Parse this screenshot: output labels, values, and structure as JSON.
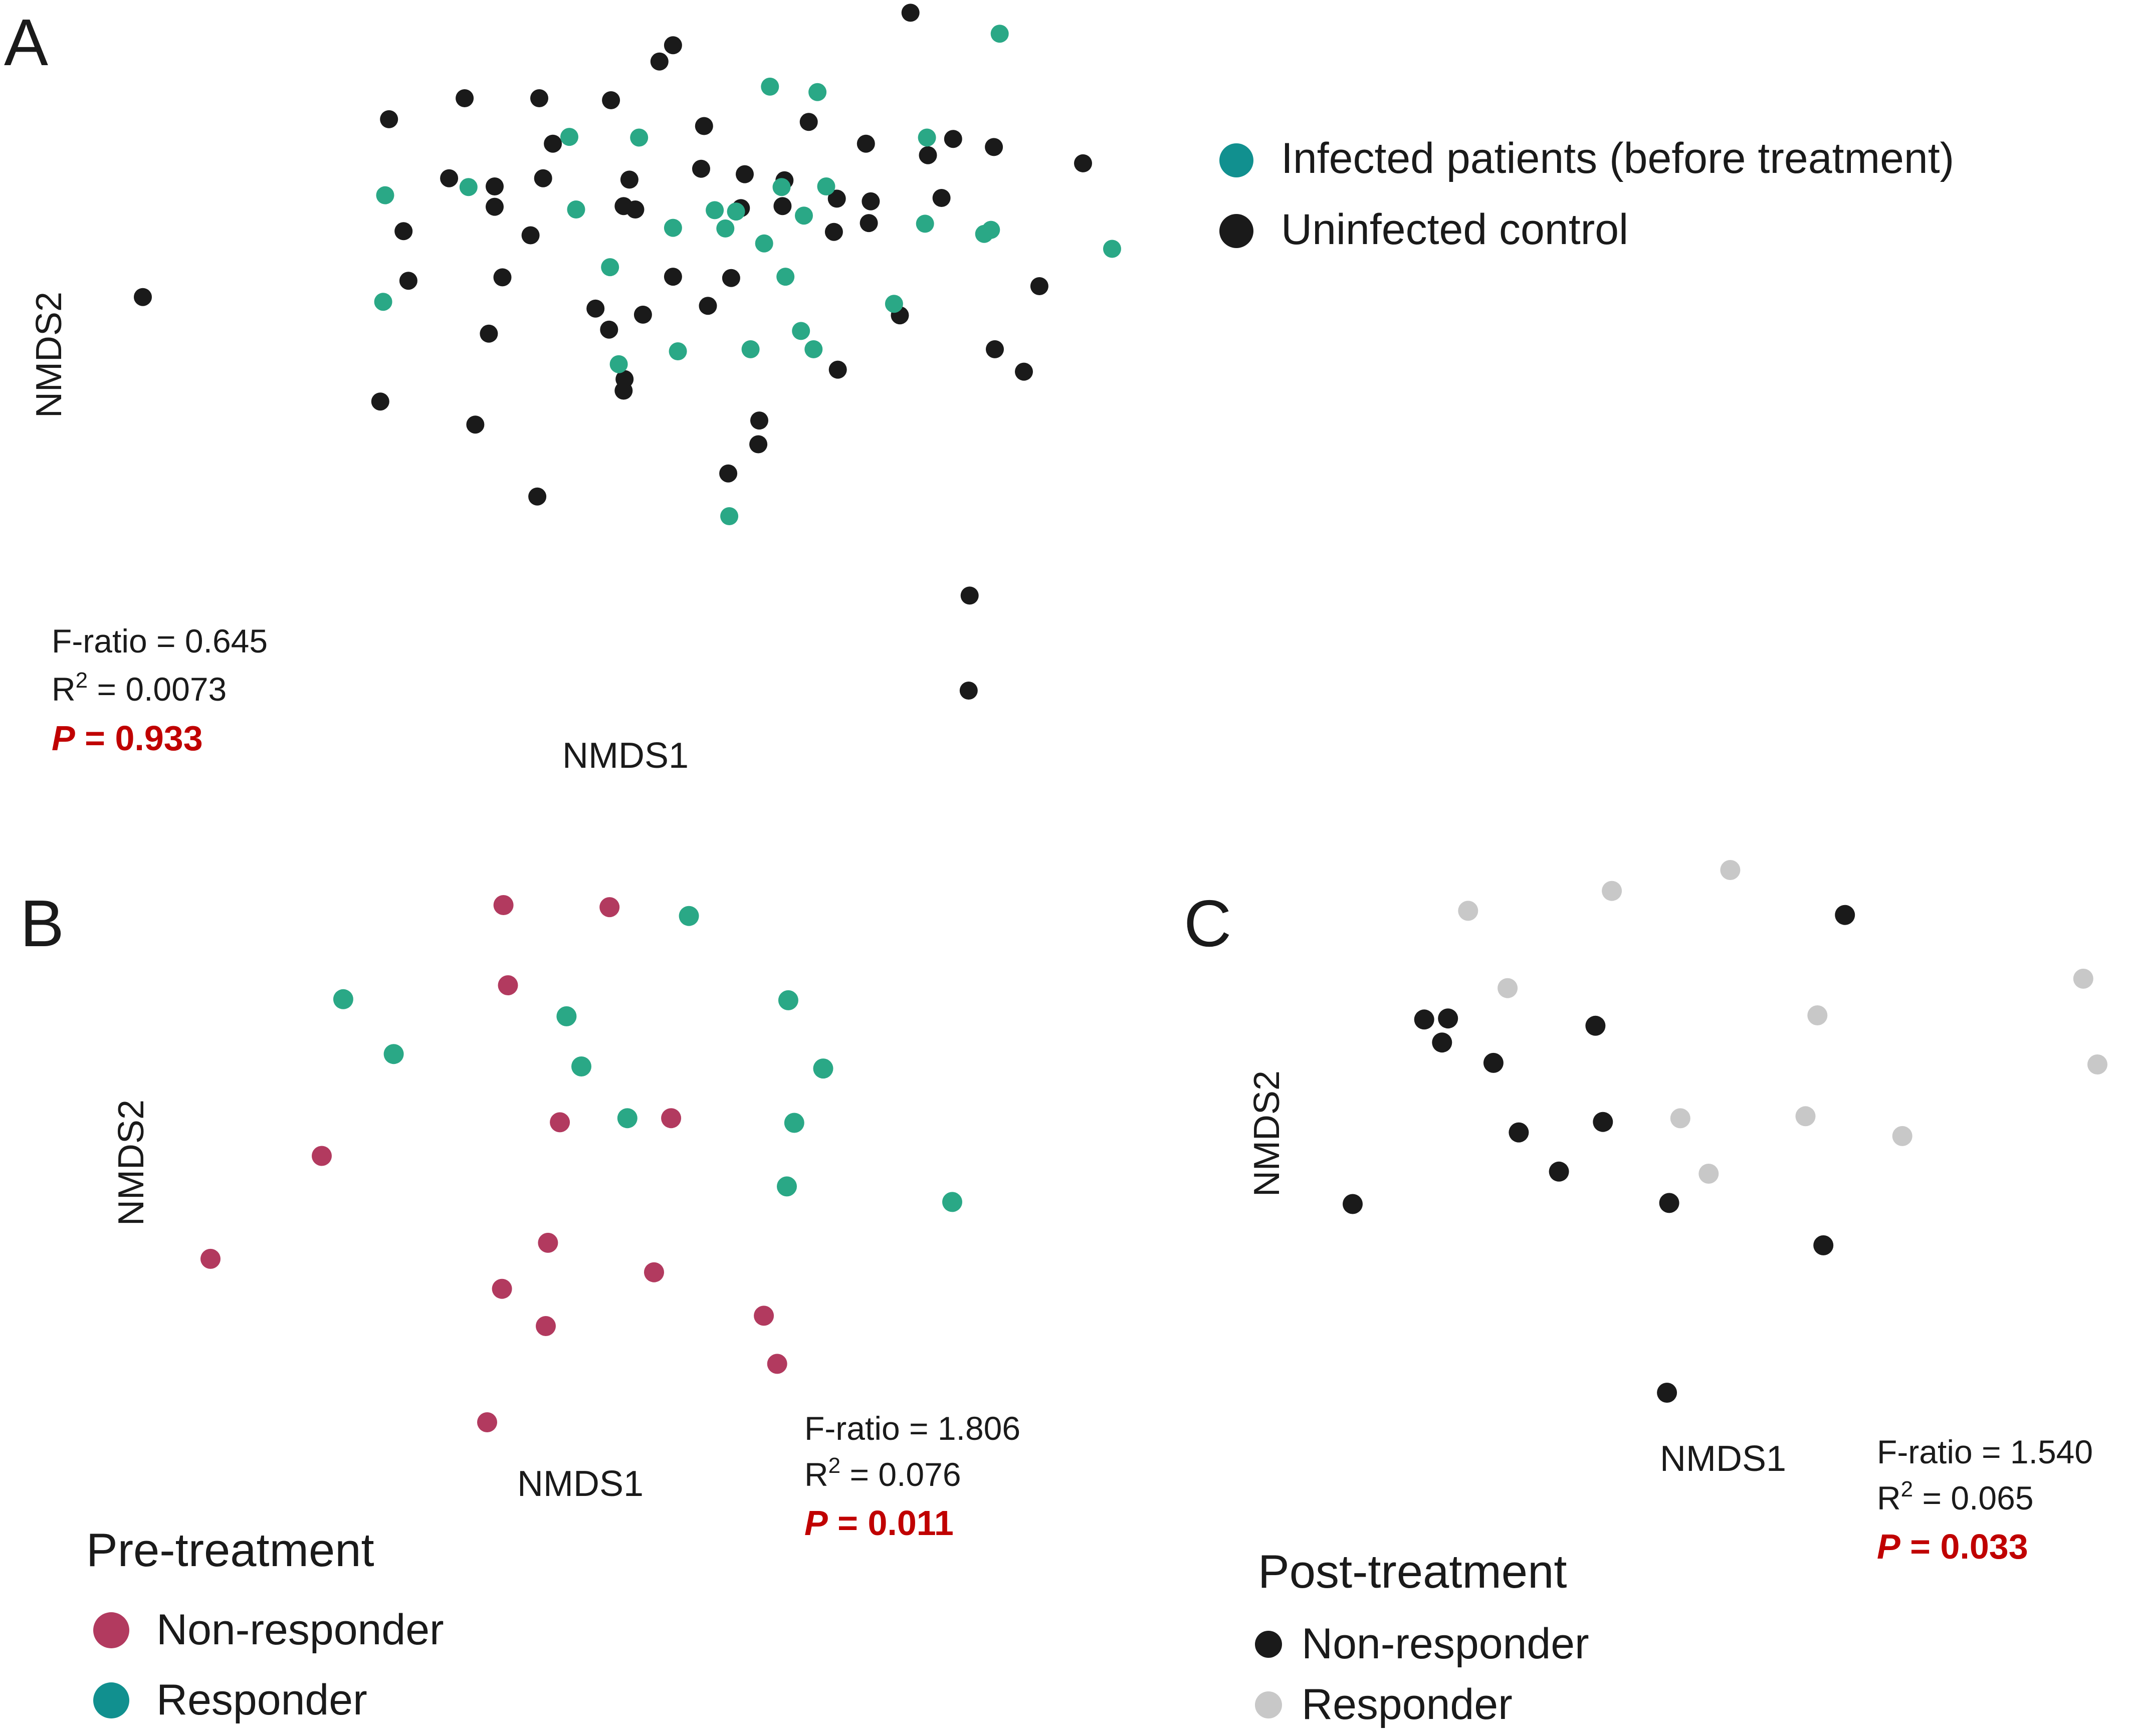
{
  "colors": {
    "infected": "#2aa886",
    "legend_infected": "#11908f",
    "uninfected": "#1a1a1a",
    "non_responder_pre": "#b23a5f",
    "responder_pre": "#2aa886",
    "legend_responder_pre": "#11908f",
    "non_responder_post": "#1a1a1a",
    "responder_post": "#c8c8c8",
    "p_value": "#c00000",
    "text": "#1a1a1a"
  },
  "chart_data": [
    {
      "panel": "A",
      "type": "scatter",
      "xlabel": "NMDS1",
      "ylabel": "NMDS2",
      "grid": false,
      "axes_visible": false,
      "xlim": [
        0,
        100
      ],
      "ylim": [
        0,
        100
      ],
      "legend": {
        "placement": "top-right",
        "entries": [
          {
            "label": "Infected patients (before treatment)",
            "color_key": "legend_infected"
          },
          {
            "label": "Uninfected control",
            "color_key": "uninfected"
          }
        ]
      },
      "stats": {
        "f_ratio": "F-ratio = 0.645",
        "r2_prefix": "R",
        "r2_sup": "2",
        "r2_value": " = 0.0073",
        "p_label": "P",
        "p_value": " = 0.933"
      },
      "series": [
        {
          "name": "Uninfected control",
          "color_key": "uninfected",
          "points": [
            [
              0,
              58.0
            ],
            [
              25.4,
              84.2
            ],
            [
              33.2,
              87.3
            ],
            [
              40.9,
              87.3
            ],
            [
              48.3,
              87.0
            ],
            [
              53.3,
              92.7
            ],
            [
              54.7,
              95.1
            ],
            [
              79.2,
              99.9
            ],
            [
              42.3,
              80.6
            ],
            [
              57.9,
              83.2
            ],
            [
              68.7,
              83.8
            ],
            [
              83.6,
              81.3
            ],
            [
              31.6,
              75.5
            ],
            [
              41.3,
              75.5
            ],
            [
              50.2,
              75.3
            ],
            [
              57.6,
              76.9
            ],
            [
              62.1,
              76.1
            ],
            [
              66.2,
              75.2
            ],
            [
              74.6,
              80.6
            ],
            [
              81.0,
              78.9
            ],
            [
              87.8,
              80.1
            ],
            [
              97.0,
              77.7
            ],
            [
              36.3,
              74.3
            ],
            [
              36.3,
              71.3
            ],
            [
              49.6,
              71.4
            ],
            [
              50.8,
              70.9
            ],
            [
              61.7,
              71.1
            ],
            [
              66.0,
              71.4
            ],
            [
              71.6,
              72.5
            ],
            [
              75.1,
              72.1
            ],
            [
              82.4,
              72.6
            ],
            [
              26.9,
              67.7
            ],
            [
              40.0,
              67.1
            ],
            [
              71.3,
              67.6
            ],
            [
              74.9,
              68.9
            ],
            [
              27.4,
              60.4
            ],
            [
              37.1,
              60.9
            ],
            [
              54.7,
              61.0
            ],
            [
              60.7,
              60.8
            ],
            [
              92.5,
              59.6
            ],
            [
              46.7,
              56.3
            ],
            [
              51.6,
              55.4
            ],
            [
              58.3,
              56.7
            ],
            [
              78.1,
              55.3
            ],
            [
              35.7,
              52.6
            ],
            [
              48.1,
              53.2
            ],
            [
              87.9,
              50.3
            ],
            [
              71.7,
              47.3
            ],
            [
              90.9,
              47.0
            ],
            [
              49.7,
              45.9
            ],
            [
              49.6,
              44.2
            ],
            [
              24.5,
              42.6
            ],
            [
              34.3,
              39.2
            ],
            [
              63.6,
              39.8
            ],
            [
              63.5,
              36.3
            ],
            [
              60.4,
              32.0
            ],
            [
              40.7,
              28.6
            ],
            [
              85.3,
              14.0
            ],
            [
              85.2,
              0.0
            ]
          ]
        },
        {
          "name": "Infected patients (before treatment)",
          "color_key": "infected",
          "points": [
            [
              88.4,
              96.8
            ],
            [
              64.7,
              89.0
            ],
            [
              69.6,
              88.2
            ],
            [
              44.0,
              81.6
            ],
            [
              51.2,
              81.5
            ],
            [
              80.9,
              81.5
            ],
            [
              33.6,
              74.2
            ],
            [
              25.0,
              73.0
            ],
            [
              65.9,
              74.2
            ],
            [
              70.5,
              74.3
            ],
            [
              44.7,
              70.9
            ],
            [
              61.2,
              70.6
            ],
            [
              68.2,
              70.0
            ],
            [
              80.7,
              68.8
            ],
            [
              54.7,
              68.2
            ],
            [
              59.0,
              70.8
            ],
            [
              60.1,
              68.1
            ],
            [
              87.5,
              67.9
            ],
            [
              64.1,
              65.9
            ],
            [
              86.8,
              67.3
            ],
            [
              100.0,
              65.1
            ],
            [
              48.2,
              62.4
            ],
            [
              66.3,
              61.0
            ],
            [
              24.8,
              57.3
            ],
            [
              77.5,
              57.0
            ],
            [
              67.9,
              53.0
            ],
            [
              62.7,
              50.3
            ],
            [
              55.2,
              50.0
            ],
            [
              69.2,
              50.3
            ],
            [
              49.1,
              48.1
            ],
            [
              60.5,
              25.7
            ]
          ]
        }
      ]
    },
    {
      "panel": "B",
      "type": "scatter",
      "xlabel": "NMDS1",
      "ylabel": "NMDS2",
      "grid": false,
      "axes_visible": false,
      "xlim": [
        0,
        100
      ],
      "ylim": [
        0,
        100
      ],
      "legend": {
        "placement": "bottom-left",
        "title": "Pre-treatment",
        "entries": [
          {
            "label": "Non-responder",
            "color_key": "non_responder_pre"
          },
          {
            "label": "Responder",
            "color_key": "legend_responder_pre"
          }
        ]
      },
      "stats": {
        "f_ratio": "F-ratio = 1.806",
        "r2_prefix": "R",
        "r2_sup": "2",
        "r2_value": " = 0.076",
        "p_label": "P",
        "p_value": " = 0.011"
      },
      "series": [
        {
          "name": "Non-responder",
          "color_key": "non_responder_pre",
          "points": [
            [
              39.5,
              100.0
            ],
            [
              53.8,
              99.6
            ],
            [
              40.1,
              84.5
            ],
            [
              15.0,
              51.5
            ],
            [
              47.1,
              58.0
            ],
            [
              62.1,
              58.8
            ],
            [
              45.5,
              34.7
            ],
            [
              0,
              31.6
            ],
            [
              39.3,
              25.8
            ],
            [
              59.8,
              29.0
            ],
            [
              45.2,
              18.6
            ],
            [
              74.6,
              20.6
            ],
            [
              76.4,
              11.3
            ],
            [
              37.3,
              0.0
            ]
          ]
        },
        {
          "name": "Responder",
          "color_key": "responder_pre",
          "points": [
            [
              64.5,
              97.9
            ],
            [
              17.9,
              81.8
            ],
            [
              77.9,
              81.6
            ],
            [
              24.7,
              71.2
            ],
            [
              48.0,
              78.5
            ],
            [
              50.0,
              68.8
            ],
            [
              82.6,
              68.4
            ],
            [
              56.2,
              58.8
            ],
            [
              78.7,
              57.9
            ],
            [
              77.7,
              45.6
            ],
            [
              100.0,
              42.6
            ]
          ]
        }
      ]
    },
    {
      "panel": "C",
      "type": "scatter",
      "xlabel": "NMDS1",
      "ylabel": "NMDS2",
      "grid": false,
      "axes_visible": false,
      "xlim": [
        0,
        100
      ],
      "ylim": [
        0,
        100
      ],
      "legend": {
        "placement": "bottom-left",
        "title": "Post-treatment",
        "entries": [
          {
            "label": "Non-responder",
            "color_key": "non_responder_post"
          },
          {
            "label": "Responder",
            "color_key": "responder_post"
          }
        ]
      },
      "stats": {
        "f_ratio": "F-ratio = 1.540",
        "r2_prefix": "R",
        "r2_sup": "2",
        "r2_value": " = 0.065",
        "p_label": "P",
        "p_value": " = 0.033"
      },
      "series": [
        {
          "name": "Non-responder",
          "color_key": "non_responder_post",
          "points": [
            [
              66.1,
              91.4
            ],
            [
              9.6,
              71.4
            ],
            [
              12.8,
              71.6
            ],
            [
              12.0,
              67.0
            ],
            [
              18.9,
              63.1
            ],
            [
              32.6,
              70.2
            ],
            [
              22.3,
              49.8
            ],
            [
              33.6,
              51.8
            ],
            [
              27.7,
              42.3
            ],
            [
              0,
              36.1
            ],
            [
              42.5,
              36.3
            ],
            [
              63.2,
              28.2
            ],
            [
              42.2,
              0.0
            ]
          ]
        },
        {
          "name": "Responder",
          "color_key": "responder_post",
          "points": [
            [
              50.7,
              100.0
            ],
            [
              34.8,
              96.0
            ],
            [
              15.5,
              92.2
            ],
            [
              20.8,
              77.4
            ],
            [
              62.4,
              72.2
            ],
            [
              98.1,
              79.2
            ],
            [
              100.0,
              62.8
            ],
            [
              44.0,
              52.5
            ],
            [
              60.8,
              52.9
            ],
            [
              73.8,
              49.1
            ],
            [
              47.8,
              41.9
            ]
          ]
        }
      ]
    }
  ]
}
